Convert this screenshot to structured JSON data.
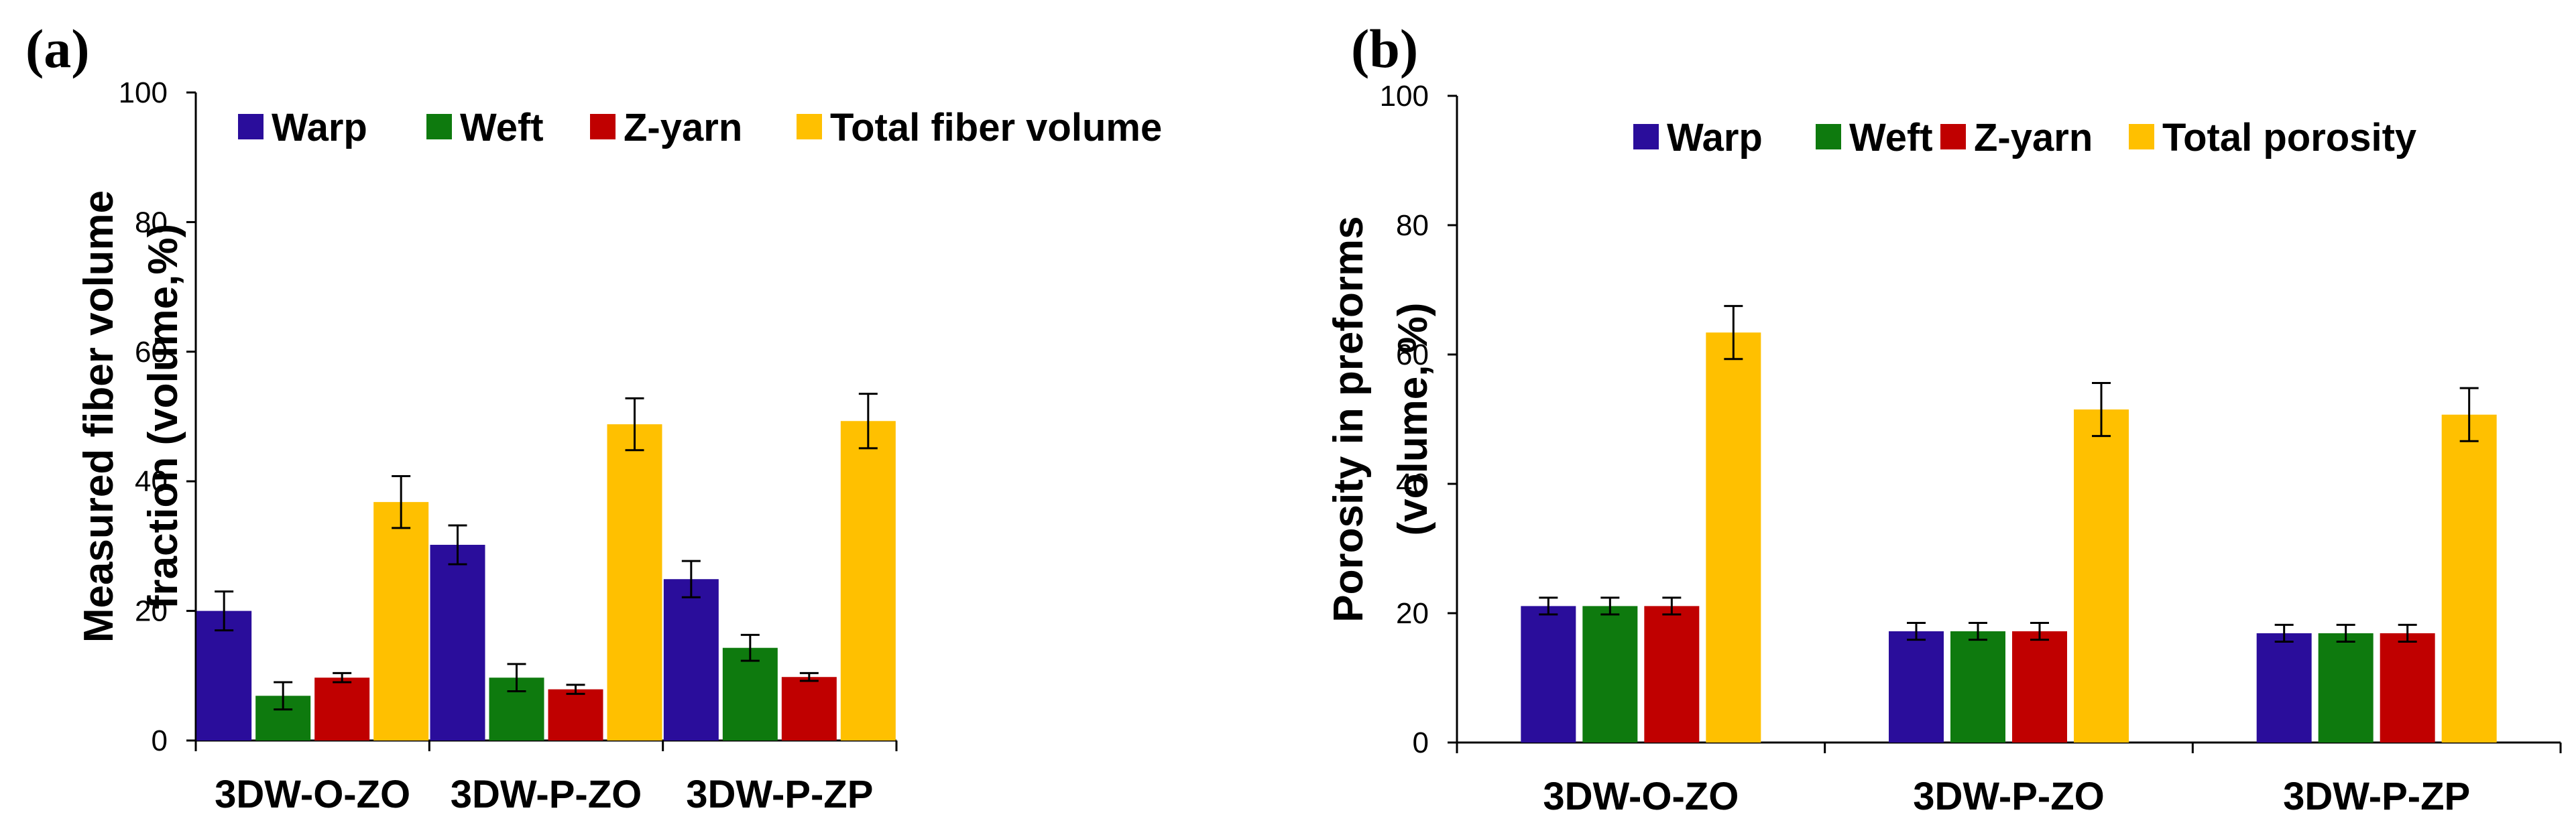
{
  "chart_data": [
    {
      "type": "bar",
      "panel_label": "(a)",
      "ylabel": "Measured fiber volume fraction (volume,%)",
      "ylabel_lines": [
        "Measured fiber volume",
        "fraction (volume,%)"
      ],
      "xlabel": "",
      "ylim": [
        0,
        100
      ],
      "yticks": [
        "0",
        "20",
        "40",
        "60",
        "80",
        "100"
      ],
      "categories": [
        "3DW-O-ZO",
        "3DW-P-ZO",
        "3DW-P-ZP"
      ],
      "legend_position": "top",
      "series": [
        {
          "name": "Warp",
          "color": "#2A0D9B",
          "values": [
            20.0,
            30.2,
            24.9
          ],
          "errors": [
            3.0,
            3.0,
            2.8
          ]
        },
        {
          "name": "Weft",
          "color": "#0E7A0E",
          "values": [
            6.9,
            9.7,
            14.3
          ],
          "errors": [
            2.1,
            2.1,
            2.0
          ]
        },
        {
          "name": "Z-yarn",
          "color": "#C00000",
          "values": [
            9.7,
            7.9,
            9.8
          ],
          "errors": [
            0.7,
            0.7,
            0.6
          ]
        },
        {
          "name": "Total fiber volume",
          "color": "#FFC000",
          "values": [
            36.8,
            48.8,
            49.3
          ],
          "errors": [
            4.0,
            4.0,
            4.2
          ]
        }
      ]
    },
    {
      "type": "bar",
      "panel_label": "(b)",
      "ylabel": "Porosity in preforms (volume, %)",
      "ylabel_lines": [
        "Porosity in preforms",
        "(volume, %)"
      ],
      "xlabel": "",
      "ylim": [
        0,
        100
      ],
      "yticks": [
        "0",
        "20",
        "40",
        "60",
        "80",
        "100"
      ],
      "categories": [
        "3DW-O-ZO",
        "3DW-P-ZO",
        "3DW-P-ZP"
      ],
      "legend_position": "top",
      "series": [
        {
          "name": "Warp",
          "color": "#2A0D9B",
          "values": [
            21.1,
            17.2,
            16.9
          ],
          "errors": [
            1.3,
            1.3,
            1.3
          ]
        },
        {
          "name": "Weft",
          "color": "#0E7A0E",
          "values": [
            21.1,
            17.2,
            16.9
          ],
          "errors": [
            1.3,
            1.3,
            1.3
          ]
        },
        {
          "name": "Z-yarn",
          "color": "#C00000",
          "values": [
            21.1,
            17.2,
            16.9
          ],
          "errors": [
            1.3,
            1.3,
            1.3
          ]
        },
        {
          "name": "Total porosity",
          "color": "#FFC000",
          "values": [
            63.4,
            51.5,
            50.7
          ],
          "errors": [
            4.1,
            4.1,
            4.1
          ]
        }
      ]
    }
  ]
}
